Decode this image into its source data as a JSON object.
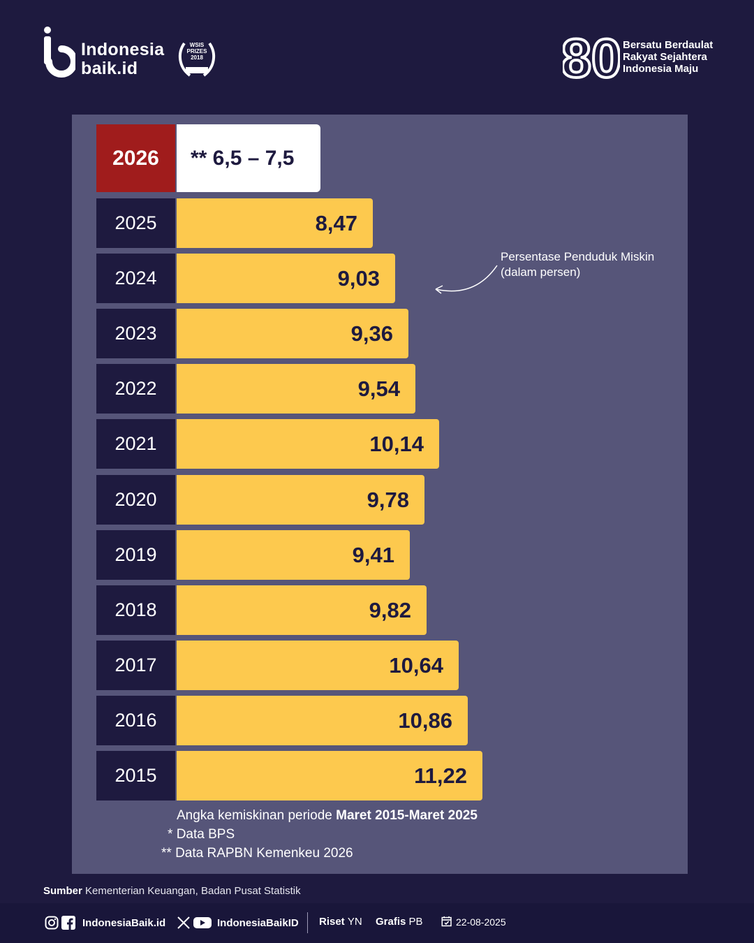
{
  "header": {
    "logo_line1": "Indonesia",
    "logo_line2": "baik.id",
    "wsis_line1": "WSIS",
    "wsis_line2": "PRIZES",
    "wsis_line3": "2018",
    "wsis_line4": "WINNER",
    "anniv_number": "80",
    "anniv_line1": "Bersatu Berdaulat",
    "anniv_line2": "Rakyat Sejahtera",
    "anniv_line3": "Indonesia Maju"
  },
  "chart_data": {
    "type": "bar",
    "orientation": "horizontal",
    "categories": [
      "2025",
      "2024",
      "2023",
      "2022",
      "2021",
      "2020",
      "2019",
      "2018",
      "2017",
      "2016",
      "2015"
    ],
    "values": [
      8.47,
      9.03,
      9.36,
      9.54,
      10.14,
      9.78,
      9.41,
      9.82,
      10.64,
      10.86,
      11.22
    ],
    "value_labels": [
      "8,47",
      "9,03",
      "9,36",
      "9,54",
      "10,14",
      "9,78",
      "9,41",
      "9,82",
      "10,64",
      "10,86",
      "11,22"
    ],
    "projection": {
      "year": "2026",
      "label": "** 6,5 – 7,5",
      "low": 6.5,
      "high": 7.5
    },
    "annotation_line1": "Persentase Penduduk Miskin",
    "annotation_line2": "(dalam persen)",
    "colors": {
      "bar": "#fdc94e",
      "year_cell": "#1e1a3f",
      "projection_year": "#a01c1c",
      "panel": "#565579"
    }
  },
  "notes": {
    "line1_prefix": "Angka kemiskinan periode ",
    "line1_bold": "Maret 2015-Maret 2025",
    "line2_marker": "*",
    "line2_text": "Data BPS",
    "line3_marker": "**",
    "line3_text": "Data RAPBN Kemenkeu 2026"
  },
  "source": {
    "label": "Sumber",
    "text": "Kementerian Keuangan, Badan Pusat Statistik"
  },
  "footer": {
    "handle1": "IndonesiaBaik.id",
    "handle2": "IndonesiaBaikID",
    "riset_label": "Riset",
    "riset_value": "YN",
    "grafis_label": "Grafis",
    "grafis_value": "PB",
    "date": "22-08-2025"
  }
}
